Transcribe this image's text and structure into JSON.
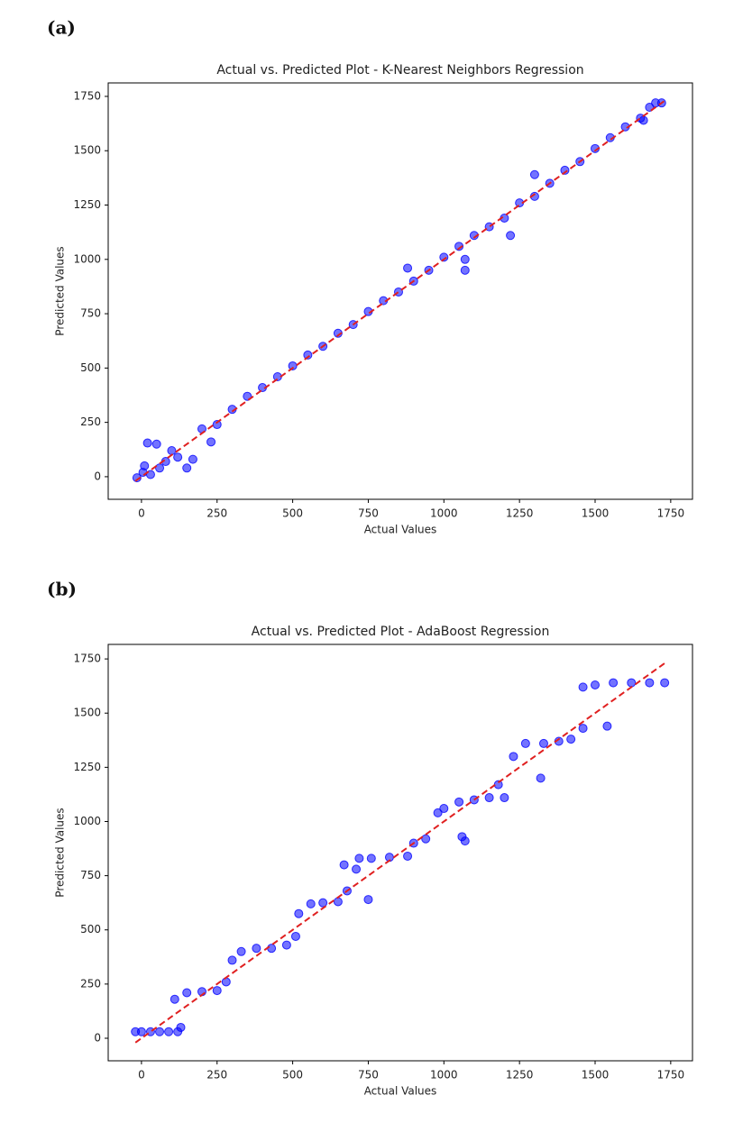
{
  "chart_data": [
    {
      "type": "scatter",
      "label": "(a)",
      "title": "Actual vs. Predicted Plot - K-Nearest Neighbors Regression",
      "x_label": "Actual Values",
      "y_label": "Predicted Values",
      "xlim": [
        -110,
        1822
      ],
      "ylim": [
        -104,
        1812
      ],
      "xticks": [
        0,
        250,
        500,
        750,
        1000,
        1250,
        1500,
        1750
      ],
      "yticks": [
        0,
        250,
        500,
        750,
        1000,
        1250,
        1500,
        1750
      ],
      "color": "#0000ff",
      "x": [
        -15,
        5,
        10,
        20,
        50,
        30,
        60,
        80,
        100,
        120,
        150,
        170,
        200,
        230,
        250,
        300,
        350,
        400,
        450,
        500,
        550,
        600,
        650,
        700,
        750,
        800,
        850,
        880,
        900,
        950,
        1000,
        1050,
        1070,
        1070,
        1100,
        1150,
        1200,
        1220,
        1250,
        1300,
        1300,
        1350,
        1400,
        1450,
        1500,
        1550,
        1600,
        1650,
        1680,
        1700,
        1720,
        1660
      ],
      "values": [
        -5,
        20,
        50,
        155,
        150,
        10,
        40,
        70,
        120,
        90,
        40,
        80,
        220,
        160,
        240,
        310,
        370,
        410,
        460,
        510,
        560,
        600,
        660,
        700,
        760,
        810,
        850,
        960,
        900,
        950,
        1010,
        1060,
        950,
        1000,
        1110,
        1150,
        1190,
        1110,
        1260,
        1290,
        1390,
        1350,
        1410,
        1450,
        1510,
        1560,
        1610,
        1650,
        1700,
        1720,
        1720,
        1640
      ],
      "line": {
        "color": "#e02020",
        "x": [
          -20,
          1730
        ],
        "y": [
          -20,
          1730
        ]
      }
    },
    {
      "type": "scatter",
      "label": "(b)",
      "title": "Actual vs. Predicted Plot - AdaBoost Regression",
      "x_label": "Actual Values",
      "y_label": "Predicted Values",
      "xlim": [
        -110,
        1822
      ],
      "ylim": [
        -104,
        1817
      ],
      "xticks": [
        0,
        250,
        500,
        750,
        1000,
        1250,
        1500,
        1750
      ],
      "yticks": [
        0,
        250,
        500,
        750,
        1000,
        1250,
        1500,
        1750
      ],
      "color": "#0000ff",
      "x": [
        -20,
        0,
        30,
        60,
        90,
        120,
        130,
        110,
        150,
        200,
        250,
        280,
        300,
        330,
        380,
        430,
        480,
        510,
        520,
        560,
        600,
        650,
        680,
        670,
        710,
        720,
        760,
        820,
        880,
        750,
        900,
        940,
        980,
        1000,
        1050,
        1100,
        1150,
        1200,
        1070,
        1060,
        1180,
        1230,
        1270,
        1330,
        1380,
        1420,
        1320,
        1460,
        1540,
        1460,
        1500,
        1560,
        1620,
        1680,
        1730
      ],
      "values": [
        30,
        30,
        30,
        30,
        30,
        30,
        50,
        180,
        210,
        215,
        220,
        260,
        360,
        400,
        415,
        415,
        430,
        470,
        575,
        620,
        625,
        630,
        680,
        800,
        780,
        830,
        830,
        835,
        840,
        640,
        900,
        920,
        1040,
        1060,
        1090,
        1100,
        1110,
        1110,
        910,
        930,
        1170,
        1300,
        1360,
        1360,
        1370,
        1380,
        1200,
        1430,
        1440,
        1620,
        1630,
        1640,
        1640,
        1640,
        1640
      ],
      "line": {
        "color": "#e02020",
        "x": [
          -20,
          1730
        ],
        "y": [
          -20,
          1730
        ]
      }
    }
  ]
}
